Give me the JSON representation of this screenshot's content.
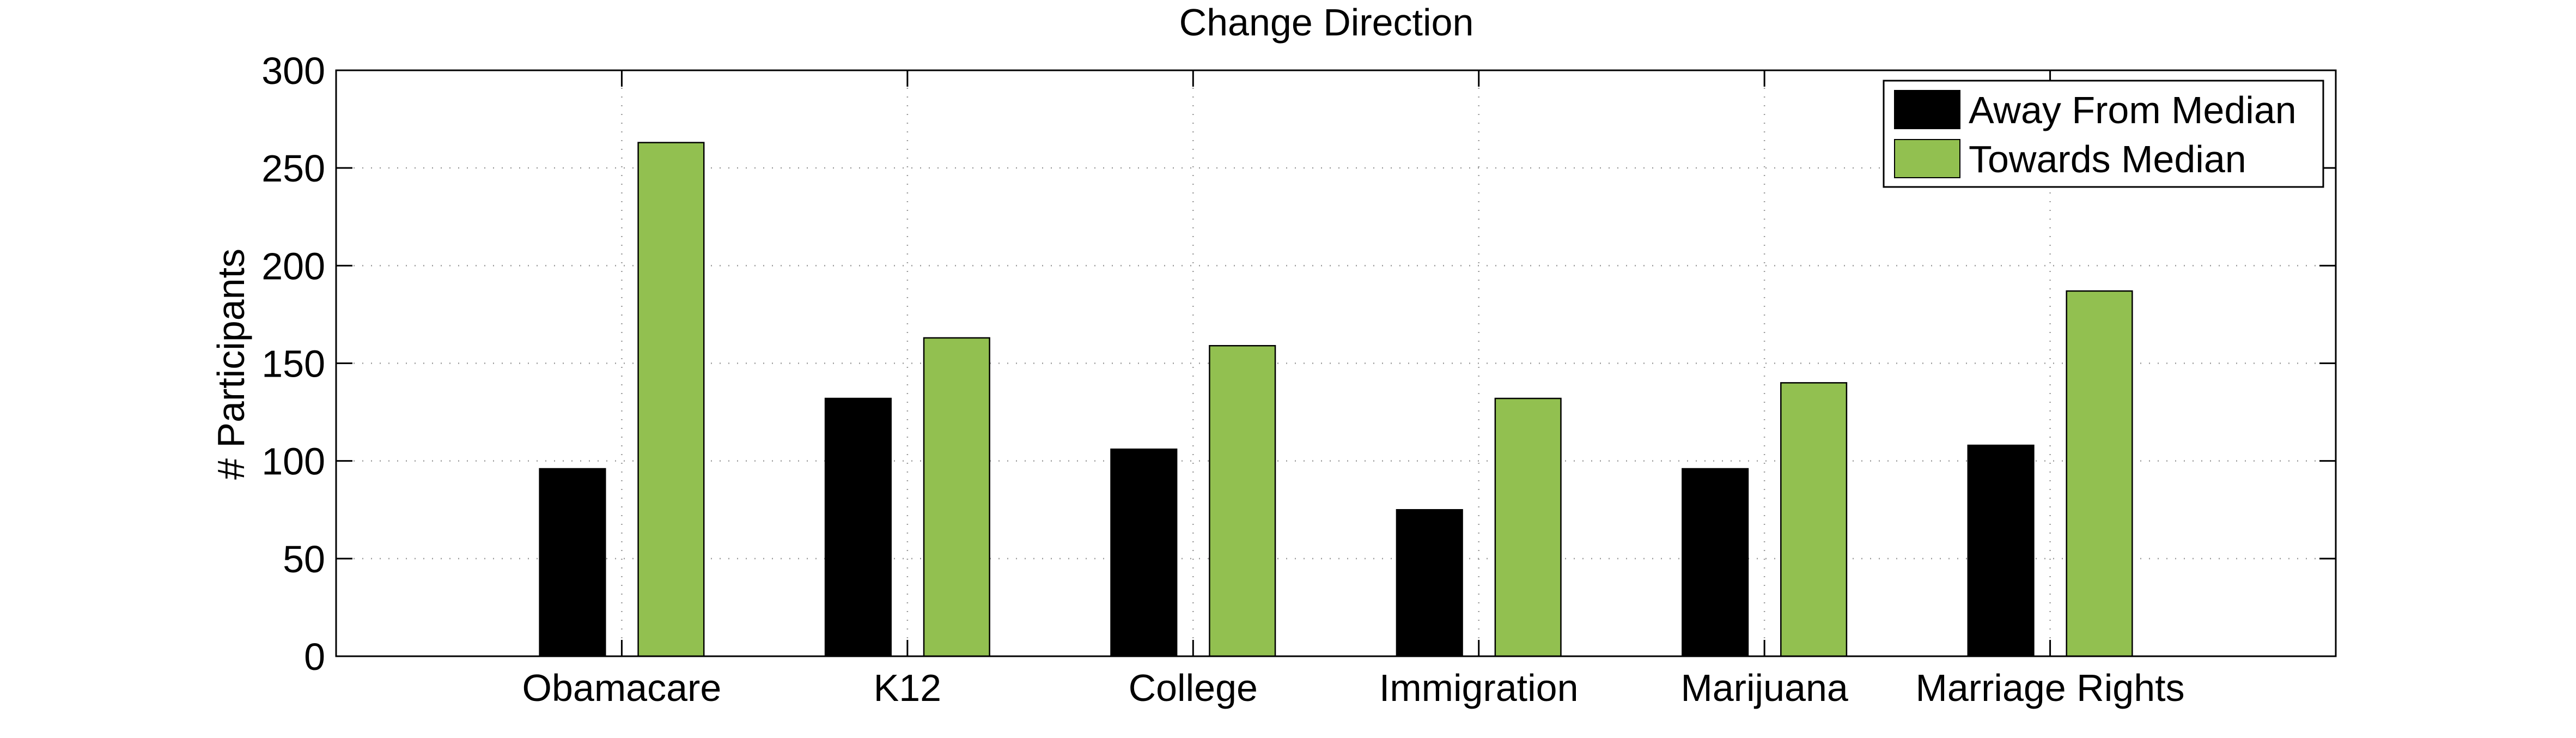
{
  "chart_data": {
    "type": "bar",
    "title": "Change Direction",
    "xlabel": "",
    "ylabel": "# Participants",
    "categories": [
      "Obamacare",
      "K12",
      "College",
      "Immigration",
      "Marijuana",
      "Marriage Rights"
    ],
    "series": [
      {
        "name": "Away From Median",
        "color": "#000000",
        "values": [
          96,
          132,
          106,
          75,
          96,
          108
        ]
      },
      {
        "name": "Towards Median",
        "color": "#92C050",
        "values": [
          263,
          163,
          159,
          132,
          140,
          187
        ]
      }
    ],
    "ylim": [
      0,
      300
    ],
    "yticks": [
      0,
      50,
      100,
      150,
      200,
      250,
      300
    ],
    "grid": true,
    "legend_position": "top-right"
  }
}
